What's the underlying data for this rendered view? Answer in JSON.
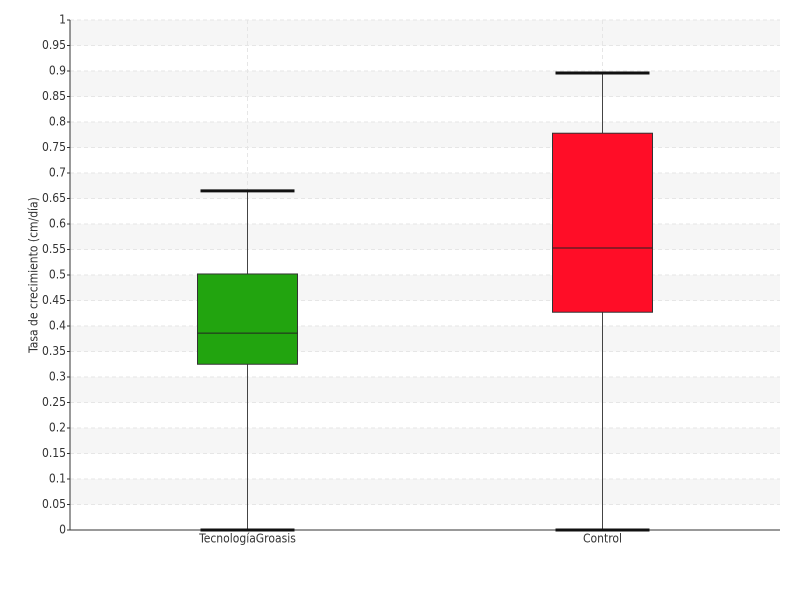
{
  "chart_data": {
    "type": "boxplot",
    "ylabel": "Tasa de crecimiento (cm/día)",
    "categories": [
      "TecnologíaGroasis",
      "Control"
    ],
    "boxes": [
      {
        "whisker_low": 0,
        "q1": 0.325,
        "median": 0.386,
        "q3": 0.502,
        "whisker_high": 0.665,
        "color": "#22a40f"
      },
      {
        "whisker_low": 0,
        "q1": 0.427,
        "median": 0.553,
        "q3": 0.778,
        "whisker_high": 0.896,
        "color": "#ff0d27"
      }
    ],
    "ylim": [
      0,
      1
    ],
    "yticks": [
      0,
      0.05,
      0.1,
      0.15,
      0.2,
      0.25,
      0.3,
      0.35,
      0.4,
      0.45,
      0.5,
      0.55,
      0.6,
      0.65,
      0.7,
      0.75,
      0.8,
      0.85,
      0.9,
      0.95,
      1
    ],
    "grid": true
  }
}
